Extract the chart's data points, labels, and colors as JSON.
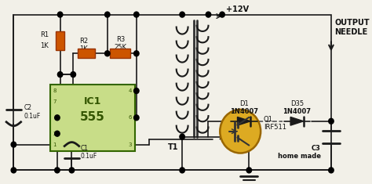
{
  "bg_color": "#f2f0e8",
  "wire_color": "#1a1a1a",
  "resistor_color": "#cc5500",
  "resistor_edge": "#993300",
  "ic_fill": "#c8dd88",
  "ic_border": "#336600",
  "ic_text": "#335500",
  "mosfet_fill": "#ddaa22",
  "mosfet_edge": "#996600",
  "dot_color": "#000000",
  "text_color": "#111111",
  "supply_label": "+12V",
  "output_label1": "OUTPUT",
  "output_label2": "NEEDLE",
  "d1_label1": "D1",
  "d1_label2": "1N4007",
  "d35_label1": "D35",
  "d35_label2": "1N4007",
  "q1_label": "Q1\nIRF511",
  "t1_label": "T1",
  "r1_label1": "R1",
  "r1_label2": "1K",
  "r2_label1": "R2",
  "r2_label2": "1K",
  "r3_label1": "R3",
  "r3_label2": "25K",
  "c1_label": "C1\n0.1uF",
  "c2_label": "C2\n0.1uF",
  "c3_label": "C3\nhome made",
  "ic_label1": "IC1",
  "ic_label2": "555"
}
